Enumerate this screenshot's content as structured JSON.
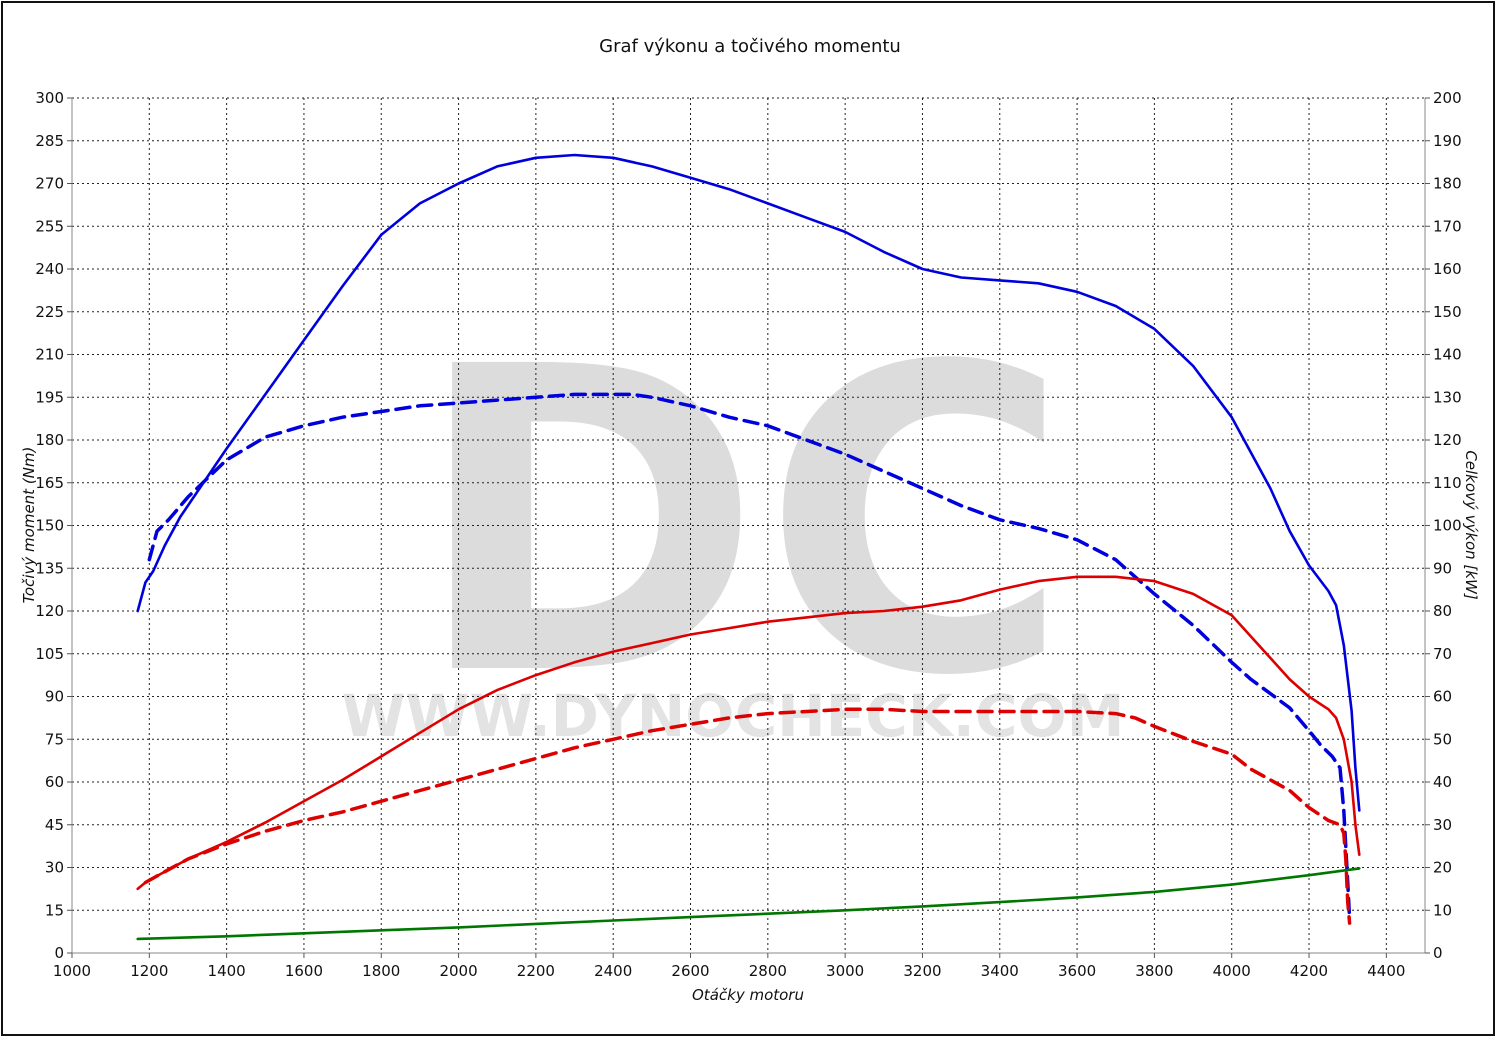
{
  "chart_data": {
    "type": "line",
    "title": "Graf výkonu a točivého momentu",
    "xlabel": "Otáčky motoru",
    "ylabel_left": "Točivý moment (Nm)",
    "ylabel_right": "Celkový výkon [kW]",
    "xlim": [
      1000,
      4500
    ],
    "ylim_left": [
      0,
      300
    ],
    "ylim_right": [
      0,
      200
    ],
    "x_ticks": [
      1000,
      1200,
      1400,
      1600,
      1800,
      2000,
      2200,
      2400,
      2600,
      2800,
      3000,
      3200,
      3400,
      3600,
      3800,
      4000,
      4200,
      4400
    ],
    "y_left_ticks": [
      0,
      15,
      30,
      45,
      60,
      75,
      90,
      105,
      120,
      135,
      150,
      165,
      180,
      195,
      210,
      225,
      240,
      255,
      270,
      285,
      300
    ],
    "y_right_ticks": [
      0,
      10,
      20,
      30,
      40,
      50,
      60,
      70,
      80,
      90,
      100,
      110,
      120,
      130,
      140,
      150,
      160,
      170,
      180,
      190,
      200
    ],
    "grid": true,
    "watermark": {
      "logo": "DC",
      "url": "WWW.DYNOCHECK.COM"
    },
    "series": [
      {
        "axis": "left",
        "color": "#0000dd",
        "dashed": false,
        "x": [
          1170,
          1190,
          1210,
          1240,
          1280,
          1330,
          1400,
          1500,
          1600,
          1700,
          1800,
          1900,
          2000,
          2100,
          2200,
          2300,
          2400,
          2500,
          2600,
          2700,
          2800,
          2900,
          3000,
          3100,
          3200,
          3300,
          3400,
          3500,
          3600,
          3700,
          3800,
          3900,
          4000,
          4100,
          4150,
          4200,
          4250,
          4270,
          4290,
          4310,
          4320,
          4330
        ],
        "values": [
          120,
          130,
          134,
          143,
          153,
          163,
          177,
          196,
          215,
          234,
          252,
          263,
          270,
          276,
          279,
          280,
          279,
          276,
          272,
          268,
          263,
          258,
          253,
          246,
          240,
          237,
          236,
          235,
          232,
          227,
          219,
          206,
          188,
          163,
          148,
          136,
          127,
          122,
          108,
          85,
          65,
          50
        ]
      },
      {
        "axis": "left",
        "color": "#0000dd",
        "dashed": true,
        "x": [
          1200,
          1220,
          1250,
          1300,
          1400,
          1500,
          1600,
          1700,
          1800,
          1900,
          2000,
          2100,
          2200,
          2300,
          2400,
          2450,
          2500,
          2600,
          2700,
          2800,
          2900,
          3000,
          3100,
          3200,
          3300,
          3400,
          3500,
          3600,
          3700,
          3800,
          3900,
          4000,
          4050,
          4100,
          4150,
          4200,
          4230,
          4260,
          4280,
          4290,
          4300,
          4305
        ],
        "values": [
          138,
          148,
          152,
          160,
          173,
          181,
          185,
          188,
          190,
          192,
          193,
          194,
          195,
          196,
          196,
          196,
          195,
          192,
          188,
          185,
          180,
          175,
          169,
          163,
          157,
          152,
          149,
          145,
          138,
          126,
          115,
          102,
          96,
          91,
          86,
          78,
          73,
          69,
          65,
          50,
          25,
          12
        ]
      },
      {
        "axis": "right",
        "color": "#dd0000",
        "dashed": false,
        "x": [
          1170,
          1190,
          1220,
          1300,
          1400,
          1500,
          1600,
          1700,
          1800,
          1900,
          2000,
          2100,
          2200,
          2300,
          2400,
          2500,
          2600,
          2700,
          2800,
          2900,
          3000,
          3100,
          3200,
          3300,
          3400,
          3500,
          3600,
          3700,
          3800,
          3900,
          4000,
          4100,
          4150,
          4200,
          4250,
          4270,
          4290,
          4310,
          4320,
          4330
        ],
        "values": [
          15,
          16.5,
          18,
          22,
          26,
          30.5,
          35.5,
          40.5,
          46,
          51.5,
          57,
          61.5,
          65,
          68,
          70.5,
          72.5,
          74.5,
          76,
          77.5,
          78.5,
          79.5,
          80,
          81,
          82.5,
          85,
          87,
          88,
          88,
          87,
          84,
          79,
          69,
          64,
          60,
          57,
          55,
          50,
          40,
          30,
          23
        ]
      },
      {
        "axis": "right",
        "color": "#dd0000",
        "dashed": true,
        "x": [
          1190,
          1220,
          1300,
          1400,
          1500,
          1600,
          1700,
          1800,
          1900,
          2000,
          2100,
          2200,
          2300,
          2400,
          2500,
          2600,
          2700,
          2800,
          2900,
          3000,
          3100,
          3200,
          3300,
          3400,
          3500,
          3600,
          3700,
          3750,
          3800,
          3900,
          4000,
          4050,
          4100,
          4150,
          4200,
          4250,
          4280,
          4290,
          4295,
          4300,
          4305
        ],
        "values": [
          16.5,
          18,
          22,
          25.5,
          28.5,
          31,
          33,
          35.5,
          38,
          40.5,
          43,
          45.5,
          48,
          50,
          52,
          53.5,
          55,
          56,
          56.5,
          57,
          57,
          56.5,
          56.5,
          56.5,
          56.5,
          56.5,
          56,
          55,
          53,
          49.5,
          46.5,
          43,
          40.5,
          38,
          34,
          31,
          30,
          28,
          22,
          12,
          7
        ]
      },
      {
        "axis": "right",
        "color": "#007700",
        "dashed": false,
        "x": [
          1170,
          1400,
          1600,
          1800,
          2000,
          2200,
          2400,
          2600,
          2800,
          3000,
          3200,
          3400,
          3600,
          3800,
          4000,
          4200,
          4330
        ],
        "values": [
          3.3,
          3.9,
          4.6,
          5.3,
          6.0,
          6.8,
          7.6,
          8.4,
          9.2,
          10.0,
          10.9,
          11.9,
          13.0,
          14.3,
          16.0,
          18.2,
          19.8
        ]
      }
    ]
  }
}
